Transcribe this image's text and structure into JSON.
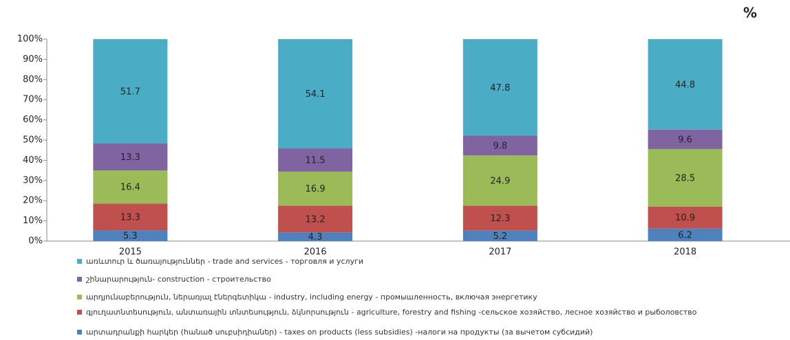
{
  "chart_data": {
    "type": "stacked_bar",
    "unit_label": "%",
    "categories": [
      "2015",
      "2016",
      "2017",
      "2018"
    ],
    "ylim": [
      0,
      100
    ],
    "yticks": [
      {
        "value": 0,
        "label": "0%"
      },
      {
        "value": 10,
        "label": "10%"
      },
      {
        "value": 20,
        "label": "20%"
      },
      {
        "value": 30,
        "label": "30%"
      },
      {
        "value": 40,
        "label": "40%"
      },
      {
        "value": 50,
        "label": "50%"
      },
      {
        "value": 60,
        "label": "60%"
      },
      {
        "value": 70,
        "label": "70%"
      },
      {
        "value": 80,
        "label": "80%"
      },
      {
        "value": 90,
        "label": "90%"
      },
      {
        "value": 100,
        "label": "100%"
      }
    ],
    "grid": false,
    "legend": "bottom",
    "series": [
      {
        "name": "արտադրանքի հարկեր (հանած սուբսիդիաներ) - taxes on products (less subsidies) -налоги на продукты (за вычетом субсидий)",
        "color": "#4f81bd",
        "values": [
          5.3,
          4.3,
          5.2,
          6.2
        ]
      },
      {
        "name": "գյուղատնտեսություն, անտառային տնտեսություն, ձկնորսություն - agriculture, forestry and fishing -сельское хозяйство, лесное хозяйство и рыболовство",
        "color": "#c0504d",
        "values": [
          13.3,
          13.2,
          12.3,
          10.9
        ]
      },
      {
        "name": "արդյունաբերություն, ներառյալ էներգետիկա - industry, including energy - промышленность, включая энергетику",
        "color": "#9bbb59",
        "values": [
          16.4,
          16.9,
          24.9,
          28.5
        ]
      },
      {
        "name": "շինարարություն- construction - строительство",
        "color": "#8064a2",
        "values": [
          13.3,
          11.5,
          9.8,
          9.6
        ]
      },
      {
        "name": "առևտուր և ծառայություններ - trade and services - торговля и услуги",
        "color": "#4bacc6",
        "values": [
          51.7,
          54.1,
          47.8,
          44.8
        ]
      }
    ]
  }
}
